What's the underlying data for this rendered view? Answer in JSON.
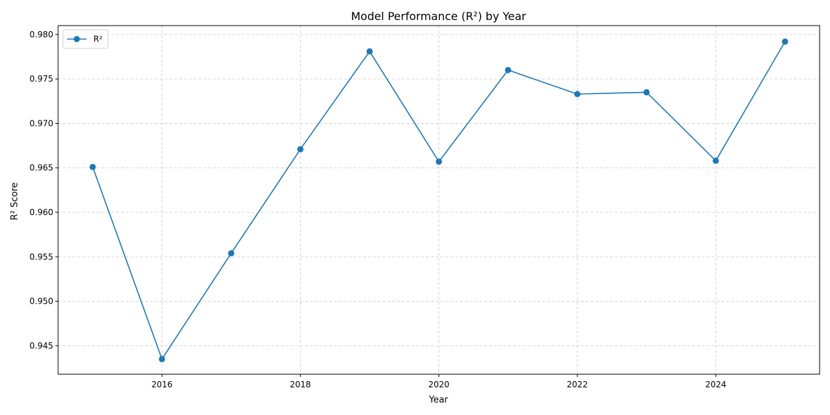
{
  "chart_data": {
    "type": "line",
    "title": "Model Performance (R²) by Year",
    "xlabel": "Year",
    "ylabel": "R² Score",
    "xlim": [
      2014.5,
      2025.5
    ],
    "ylim": [
      0.9418,
      0.981
    ],
    "x_ticks": [
      2016,
      2018,
      2020,
      2022,
      2024
    ],
    "y_ticks": [
      0.945,
      0.95,
      0.955,
      0.96,
      0.965,
      0.97,
      0.975,
      0.98
    ],
    "grid": true,
    "legend_position": "upper-left",
    "series": [
      {
        "name": "R²",
        "color": "#1f77b4",
        "marker": "circle",
        "x": [
          2015,
          2016,
          2017,
          2018,
          2019,
          2020,
          2021,
          2022,
          2023,
          2024,
          2025
        ],
        "values": [
          0.9651,
          0.9435,
          0.9554,
          0.9671,
          0.9781,
          0.9657,
          0.976,
          0.9733,
          0.9735,
          0.9658,
          0.9792
        ]
      }
    ]
  }
}
